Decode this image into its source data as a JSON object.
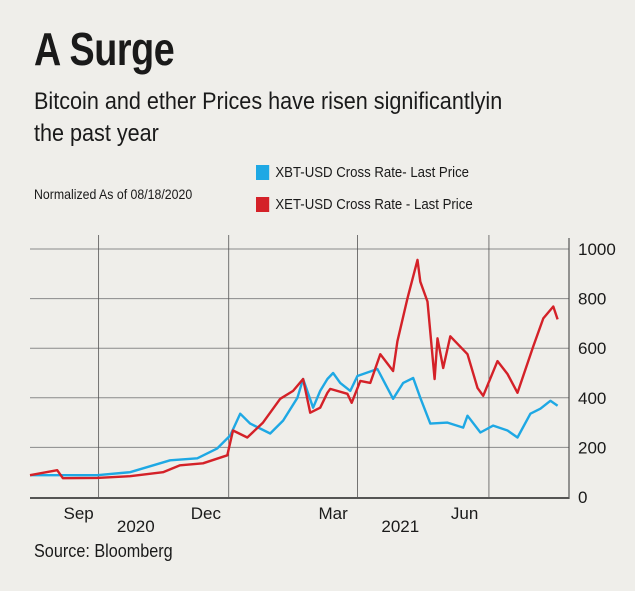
{
  "header": {
    "title": "A Surge",
    "subtitle_line1": "Bitcoin and ether Prices have risen significantlyin",
    "subtitle_line2": "the past year",
    "note": "Normalized As of 08/18/2020"
  },
  "footer": {
    "source": "Source: Bloomberg"
  },
  "chart_data": {
    "type": "line",
    "title": "A Surge",
    "xlabel": "",
    "ylabel": "",
    "x_unit": "days since 08/18/2020 (approx.)",
    "xlim": [
      0,
      377
    ],
    "ylim": [
      0,
      1000
    ],
    "yticks": [
      0,
      200,
      400,
      600,
      800,
      1000
    ],
    "ytick_labels": [
      "0",
      "200",
      "400",
      "600",
      "800",
      "1000"
    ],
    "y_axis_side": "right",
    "grid": true,
    "vertical_gridlines": [
      48,
      139,
      229,
      321
    ],
    "xtick_labels": [
      {
        "label": "Sep",
        "x": 34
      },
      {
        "label": "Dec",
        "x": 123
      },
      {
        "label": "Mar",
        "x": 212
      },
      {
        "label": "Jun",
        "x": 304
      }
    ],
    "year_labels": [
      {
        "label": "2020",
        "x": 74
      },
      {
        "label": "2021",
        "x": 259
      }
    ],
    "legend_placement": "top",
    "series": [
      {
        "name": "XBT-USD Cross Rate- Last Price",
        "color": "#1ea8e4",
        "x": [
          0,
          47,
          70,
          98,
          117,
          131,
          140,
          147,
          154,
          168,
          177,
          187,
          191,
          198,
          203,
          208,
          212,
          217,
          224,
          229,
          243,
          254,
          261,
          268,
          273,
          280,
          292,
          303,
          306,
          315,
          324,
          334,
          341,
          350,
          357,
          364,
          369
        ],
        "values": [
          88,
          88,
          100,
          148,
          156,
          196,
          248,
          336,
          296,
          256,
          308,
          400,
          476,
          360,
          428,
          476,
          500,
          460,
          428,
          488,
          516,
          396,
          460,
          480,
          400,
          296,
          300,
          280,
          328,
          260,
          288,
          268,
          240,
          336,
          356,
          388,
          368
        ]
      },
      {
        "name": "XET-USD Cross Rate - Last Price",
        "color": "#d42128",
        "x": [
          0,
          19,
          23,
          47,
          70,
          93,
          105,
          121,
          138,
          142,
          152,
          163,
          175,
          184,
          191,
          196,
          203,
          208,
          210,
          222,
          225,
          231,
          238,
          245,
          254,
          257,
          264,
          271,
          273,
          278,
          283,
          285,
          289,
          294,
          306,
          313,
          317,
          327,
          334,
          341,
          352,
          359,
          366,
          369
        ],
        "values": [
          88,
          108,
          76,
          77,
          84,
          100,
          128,
          136,
          168,
          268,
          240,
          300,
          396,
          428,
          476,
          340,
          360,
          420,
          436,
          416,
          380,
          468,
          460,
          576,
          508,
          628,
          800,
          956,
          868,
          788,
          476,
          640,
          520,
          648,
          576,
          440,
          408,
          548,
          496,
          420,
          608,
          720,
          768,
          716
        ]
      }
    ]
  }
}
